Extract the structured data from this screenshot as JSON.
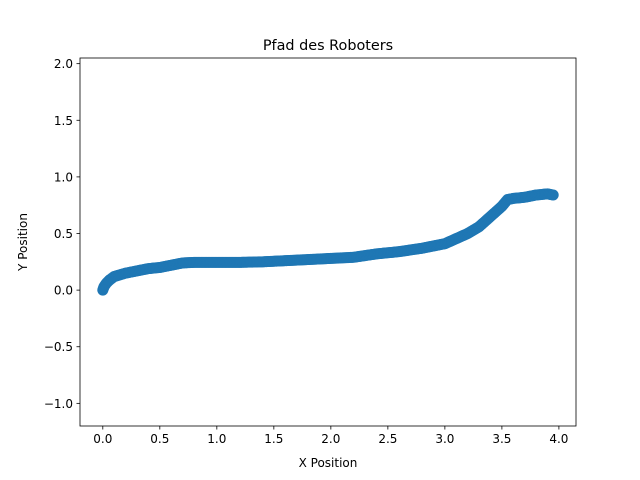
{
  "chart_data": {
    "type": "scatter",
    "title": "Pfad des Roboters",
    "xlabel": "X Position",
    "ylabel": "Y Position",
    "xlim": [
      -0.2,
      4.15
    ],
    "ylim": [
      -1.2,
      2.05
    ],
    "xticks": [
      0.0,
      0.5,
      1.0,
      1.5,
      2.0,
      2.5,
      3.0,
      3.5,
      4.0
    ],
    "xtick_labels": [
      "0.0",
      "0.5",
      "1.0",
      "1.5",
      "2.0",
      "2.5",
      "3.0",
      "3.5",
      "4.0"
    ],
    "yticks": [
      -1.0,
      -0.5,
      0.0,
      0.5,
      1.0,
      1.5,
      2.0
    ],
    "ytick_labels": [
      "−1.0",
      "−0.5",
      "0.0",
      "0.5",
      "1.0",
      "1.5",
      "2.0"
    ],
    "grid": false,
    "marker_color": "#1f77b4",
    "path": [
      [
        0.0,
        0.0
      ],
      [
        0.01,
        0.03
      ],
      [
        0.03,
        0.06
      ],
      [
        0.06,
        0.09
      ],
      [
        0.1,
        0.12
      ],
      [
        0.2,
        0.15
      ],
      [
        0.3,
        0.17
      ],
      [
        0.4,
        0.19
      ],
      [
        0.5,
        0.2
      ],
      [
        0.6,
        0.22
      ],
      [
        0.7,
        0.24
      ],
      [
        0.8,
        0.245
      ],
      [
        1.0,
        0.245
      ],
      [
        1.2,
        0.245
      ],
      [
        1.4,
        0.25
      ],
      [
        1.6,
        0.26
      ],
      [
        1.8,
        0.27
      ],
      [
        2.0,
        0.28
      ],
      [
        2.2,
        0.29
      ],
      [
        2.4,
        0.32
      ],
      [
        2.6,
        0.34
      ],
      [
        2.8,
        0.37
      ],
      [
        3.0,
        0.41
      ],
      [
        3.2,
        0.5
      ],
      [
        3.3,
        0.56
      ],
      [
        3.4,
        0.65
      ],
      [
        3.5,
        0.74
      ],
      [
        3.55,
        0.8
      ],
      [
        3.6,
        0.81
      ],
      [
        3.7,
        0.82
      ],
      [
        3.8,
        0.84
      ],
      [
        3.9,
        0.85
      ],
      [
        3.95,
        0.84
      ]
    ]
  }
}
